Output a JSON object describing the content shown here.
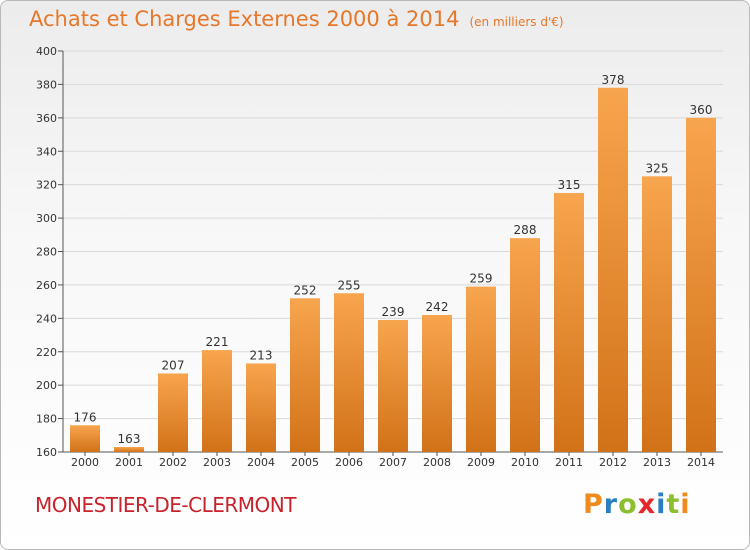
{
  "header": {
    "title": "Achats et Charges Externes 2000 à 2014",
    "subtitle": "(en milliers d'€)"
  },
  "footer": {
    "city": "MONESTIER-DE-CLERMONT",
    "logo_letters": [
      "P",
      "r",
      "o",
      "x",
      "i",
      "t",
      "i"
    ],
    "logo_colors": [
      "#f08a1c",
      "#2a7fc1",
      "#8bbf2f",
      "#e5272d",
      "#2a7fc1",
      "#8bbf2f",
      "#f08a1c"
    ]
  },
  "colors": {
    "bar_top": "#f7a54e",
    "bar_bottom": "#d27218",
    "grid": "#d9d9d9"
  },
  "chart_data": {
    "type": "bar",
    "title": "Achats et Charges Externes 2000 à 2014",
    "subtitle": "(en milliers d'€)",
    "categories": [
      "2000",
      "2001",
      "2002",
      "2003",
      "2004",
      "2005",
      "2006",
      "2007",
      "2008",
      "2009",
      "2010",
      "2011",
      "2012",
      "2013",
      "2014"
    ],
    "values": [
      176,
      163,
      207,
      221,
      213,
      252,
      255,
      239,
      242,
      259,
      288,
      315,
      378,
      325,
      360
    ],
    "ylim": [
      160,
      400
    ],
    "yticks": [
      160,
      180,
      200,
      220,
      240,
      260,
      280,
      300,
      320,
      340,
      360,
      380,
      400
    ],
    "grid": true,
    "data_labels": true
  }
}
